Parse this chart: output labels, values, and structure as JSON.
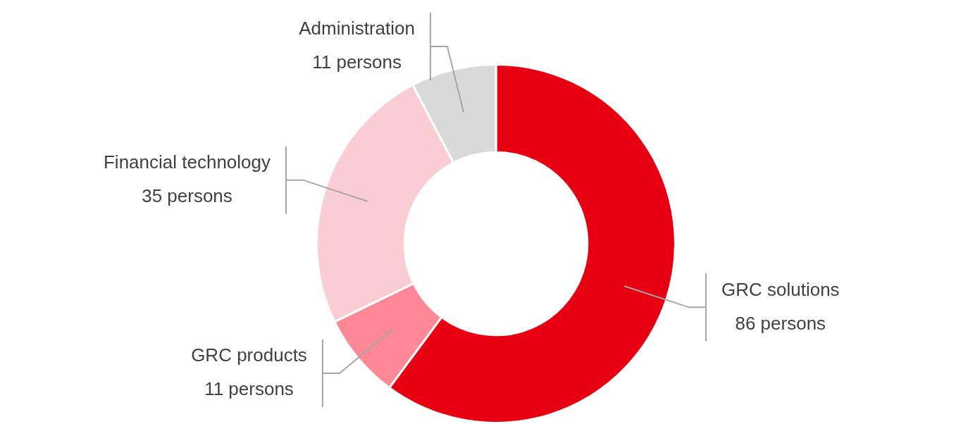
{
  "chart_data": {
    "type": "donut",
    "categories": [
      "GRC solutions",
      "GRC products",
      "Financial technology",
      "Administration"
    ],
    "values": [
      86,
      11,
      35,
      11
    ],
    "value_labels": [
      "86 persons",
      "11 persons",
      "35 persons",
      "11 persons"
    ],
    "colors": [
      "#e60012",
      "#ff8896",
      "#f9cdd1",
      "#d9d9d9"
    ]
  }
}
